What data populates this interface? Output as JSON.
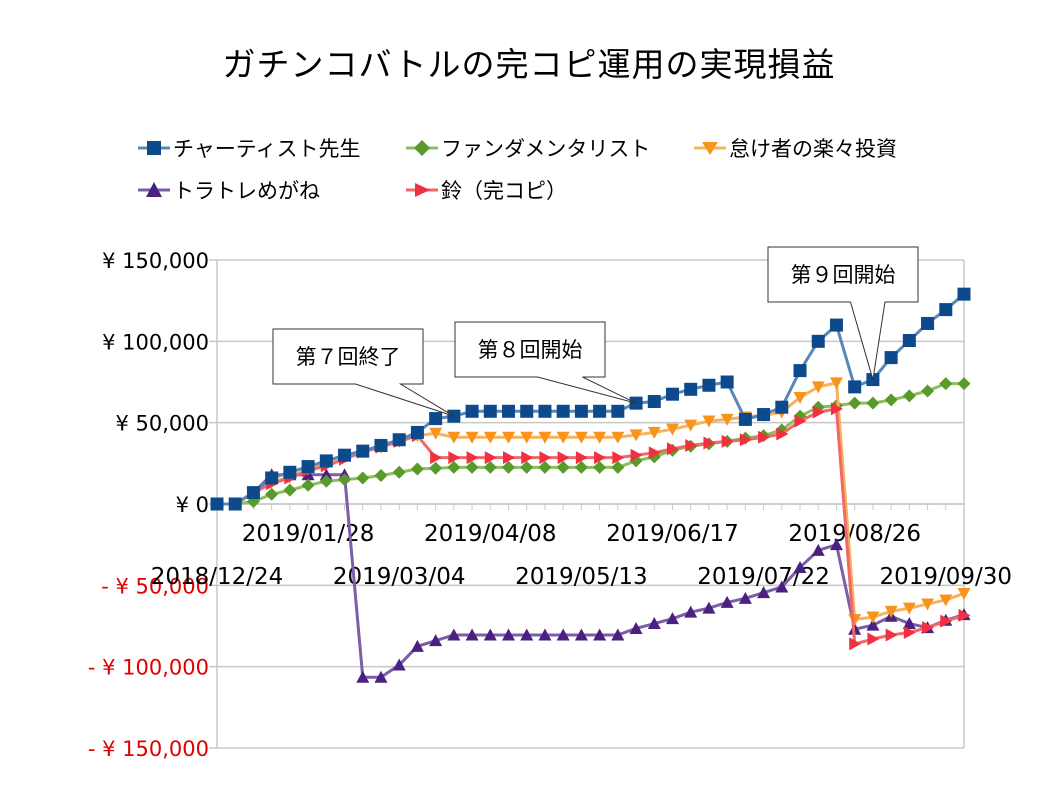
{
  "chart_data": {
    "type": "line",
    "title": "ガチンコバトルの完コピ運用の実現損益",
    "xlabel": "",
    "ylabel": "",
    "ylim": [
      -150000,
      150000
    ],
    "yticks": [
      150000,
      100000,
      50000,
      0,
      -50000,
      -100000,
      -150000
    ],
    "ytick_labels": [
      "¥ 150,000",
      "¥ 100,000",
      "¥ 50,000",
      "¥ 0",
      "- ¥ 50,000",
      "- ¥ 100,000",
      "- ¥ 150,000"
    ],
    "negative_label_color": "#e00000",
    "x_start": "2018/12/24",
    "x_interval": "1 week",
    "xtick_labels_row1": [
      {
        "index": 5,
        "label": "2019/01/28"
      },
      {
        "index": 15,
        "label": "2019/04/08"
      },
      {
        "index": 25,
        "label": "2019/06/17"
      },
      {
        "index": 35,
        "label": "2019/08/26"
      }
    ],
    "xtick_labels_row2": [
      {
        "index": 0,
        "label": "2018/12/24"
      },
      {
        "index": 10,
        "label": "2019/03/04"
      },
      {
        "index": 20,
        "label": "2019/05/13"
      },
      {
        "index": 30,
        "label": "2019/07/22"
      },
      {
        "index": 40,
        "label": "2019/09/30"
      }
    ],
    "grid": true,
    "legend_position": "top",
    "series": [
      {
        "name": "チャーティスト先生",
        "color": "#5b86b8",
        "marker_color": "#0d4a8c",
        "marker": "square",
        "values": [
          0,
          0,
          7000,
          16000,
          19500,
          23000,
          26500,
          30000,
          32500,
          36000,
          39500,
          44000,
          52500,
          54000,
          57000,
          57000,
          57000,
          57000,
          57000,
          57000,
          57000,
          57000,
          57000,
          62000,
          63000,
          67500,
          70500,
          73000,
          75000,
          52000,
          55000,
          59500,
          82000,
          100000,
          110000,
          72000,
          76500,
          90000,
          100500,
          111000,
          119500,
          129000
        ]
      },
      {
        "name": "ファンダメンタリスト",
        "color": "#8bbf5a",
        "marker_color": "#5a9a2a",
        "marker": "diamond",
        "values": [
          0,
          0,
          1500,
          6000,
          8500,
          11500,
          14000,
          15000,
          16000,
          17500,
          19500,
          21500,
          22000,
          22500,
          22500,
          22500,
          22500,
          22500,
          22500,
          22500,
          22500,
          22500,
          22500,
          26500,
          29000,
          33000,
          35500,
          37000,
          38500,
          40500,
          42000,
          45500,
          54000,
          59500,
          60500,
          62000,
          62000,
          64000,
          66500,
          69500,
          74000,
          74000
        ]
      },
      {
        "name": "怠け者の楽々投資",
        "color": "#f7b25a",
        "marker_color": "#f7941d",
        "marker": "triangle-down",
        "values": [
          0,
          0,
          7000,
          13500,
          16500,
          21500,
          25000,
          29500,
          33000,
          35000,
          38500,
          42000,
          43500,
          41000,
          41000,
          41000,
          41000,
          41000,
          41000,
          41000,
          41000,
          41000,
          41000,
          42500,
          44000,
          46000,
          48500,
          51000,
          52000,
          53500,
          54500,
          56500,
          65500,
          72000,
          74500,
          -71000,
          -69500,
          -66000,
          -64000,
          -61500,
          -59000,
          -55000
        ]
      },
      {
        "name": "トラトレめがね",
        "color": "#7b5ea8",
        "marker_color": "#4a2080",
        "marker": "triangle-up",
        "values": [
          0,
          0,
          7000,
          18000,
          18000,
          18000,
          18000,
          18000,
          -106500,
          -106500,
          -99000,
          -87500,
          -84000,
          -80500,
          -80500,
          -80500,
          -80500,
          -80500,
          -80500,
          -80500,
          -80500,
          -80500,
          -80500,
          -76500,
          -73500,
          -70500,
          -66500,
          -64000,
          -60500,
          -58000,
          -54500,
          -51000,
          -39000,
          -28500,
          -25000,
          -77000,
          -74500,
          -69000,
          -73500,
          -76000,
          -71500,
          -68000
        ]
      },
      {
        "name": "鈴（完コピ）",
        "color": "#f06868",
        "marker_color": "#f03040",
        "marker": "triangle-right",
        "values": [
          0,
          0,
          7000,
          12500,
          16000,
          20500,
          23500,
          27500,
          32000,
          35000,
          38500,
          42000,
          28500,
          28500,
          28500,
          28500,
          28500,
          28500,
          28500,
          28500,
          28500,
          28500,
          28500,
          30000,
          31500,
          34000,
          36000,
          37500,
          38500,
          39500,
          41000,
          43000,
          51000,
          56500,
          58500,
          -86000,
          -83000,
          -80500,
          -79000,
          -76000,
          -72000,
          -68500
        ]
      }
    ],
    "annotations": [
      {
        "text": "第７回終了",
        "points_to_index": 13,
        "series": "チャーティスト先生"
      },
      {
        "text": "第８回開始",
        "points_to_index": 23,
        "series": "チャーティスト先生"
      },
      {
        "text": "第９回開始",
        "points_to_index": 36,
        "series": "チャーティスト先生"
      }
    ]
  }
}
